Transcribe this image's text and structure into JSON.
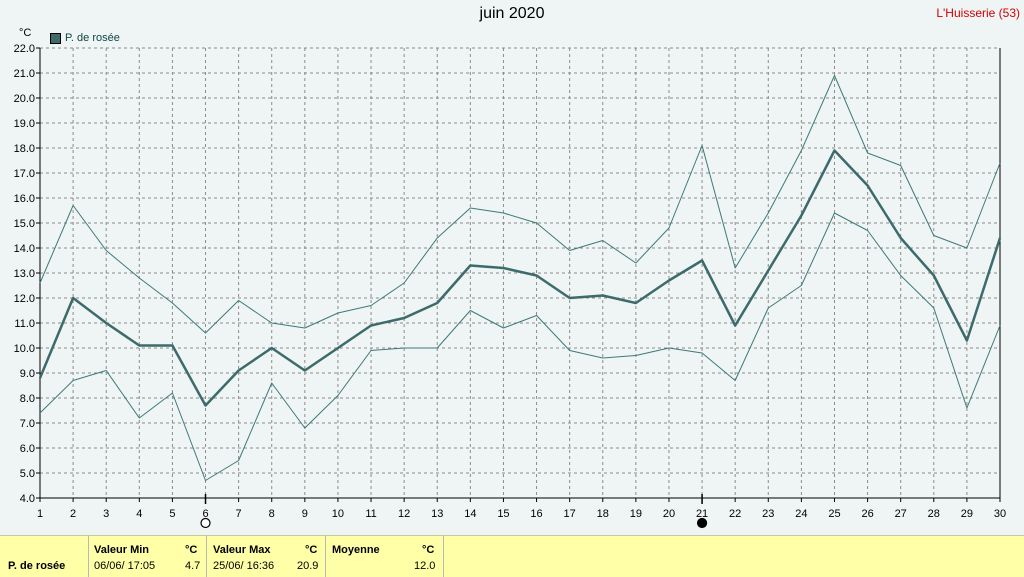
{
  "title": "juin 2020",
  "station": "L'Huisserie (53)",
  "unit": "°C",
  "legend": {
    "label": "P. de rosée",
    "color": "#3d6b6b"
  },
  "chart_data": {
    "type": "line",
    "x": [
      1,
      2,
      3,
      4,
      5,
      6,
      7,
      8,
      9,
      10,
      11,
      12,
      13,
      14,
      15,
      16,
      17,
      18,
      19,
      20,
      21,
      22,
      23,
      24,
      25,
      26,
      27,
      28,
      29,
      30
    ],
    "ylim": [
      4.0,
      22.0
    ],
    "yticks": [
      "4.0",
      "5.0",
      "6.0",
      "7.0",
      "8.0",
      "9.0",
      "10.0",
      "11.0",
      "12.0",
      "13.0",
      "14.0",
      "15.0",
      "16.0",
      "17.0",
      "18.0",
      "19.0",
      "20.0",
      "21.0",
      "22.0"
    ],
    "grid": true,
    "series": [
      {
        "name": "max",
        "color": "#3d7a7a",
        "values": [
          12.6,
          15.7,
          13.9,
          12.8,
          11.8,
          10.6,
          11.9,
          11.0,
          10.8,
          11.4,
          11.7,
          12.6,
          14.4,
          15.6,
          15.4,
          15.0,
          13.9,
          14.3,
          13.4,
          14.8,
          18.1,
          13.2,
          15.4,
          17.9,
          20.9,
          17.8,
          17.3,
          14.5,
          14.0,
          17.4
        ]
      },
      {
        "name": "P. de rosée",
        "color": "#3d6b6b",
        "values": [
          8.8,
          12.0,
          11.0,
          10.1,
          10.1,
          7.7,
          9.1,
          10.0,
          9.1,
          10.0,
          10.9,
          11.2,
          11.8,
          13.3,
          13.2,
          12.9,
          12.0,
          12.1,
          11.8,
          12.7,
          13.5,
          10.9,
          13.1,
          15.3,
          17.9,
          16.5,
          14.4,
          12.9,
          10.3,
          14.4
        ]
      },
      {
        "name": "min",
        "color": "#3d7a7a",
        "values": [
          7.4,
          8.7,
          9.1,
          7.2,
          8.2,
          4.7,
          5.5,
          8.6,
          6.8,
          8.1,
          9.9,
          10.0,
          10.0,
          11.5,
          10.8,
          11.3,
          9.9,
          9.6,
          9.7,
          10.0,
          9.8,
          8.7,
          11.6,
          12.5,
          15.4,
          14.7,
          12.9,
          11.6,
          7.6,
          10.9
        ]
      }
    ],
    "moon_markers": [
      {
        "day": 6,
        "phase": "full-moon"
      },
      {
        "day": 21,
        "phase": "new-moon"
      }
    ]
  },
  "footer": {
    "row_label": "P. de rosée",
    "min_header": "Valeur Min",
    "min_unit": "°C",
    "min_date": "06/06/  17:05",
    "min_value": "4.7",
    "max_header": "Valeur Max",
    "max_unit": "°C",
    "max_date": "25/06/  16:36",
    "max_value": "20.9",
    "avg_header": "Moyenne",
    "avg_unit": "°C",
    "avg_value": "12.0"
  }
}
